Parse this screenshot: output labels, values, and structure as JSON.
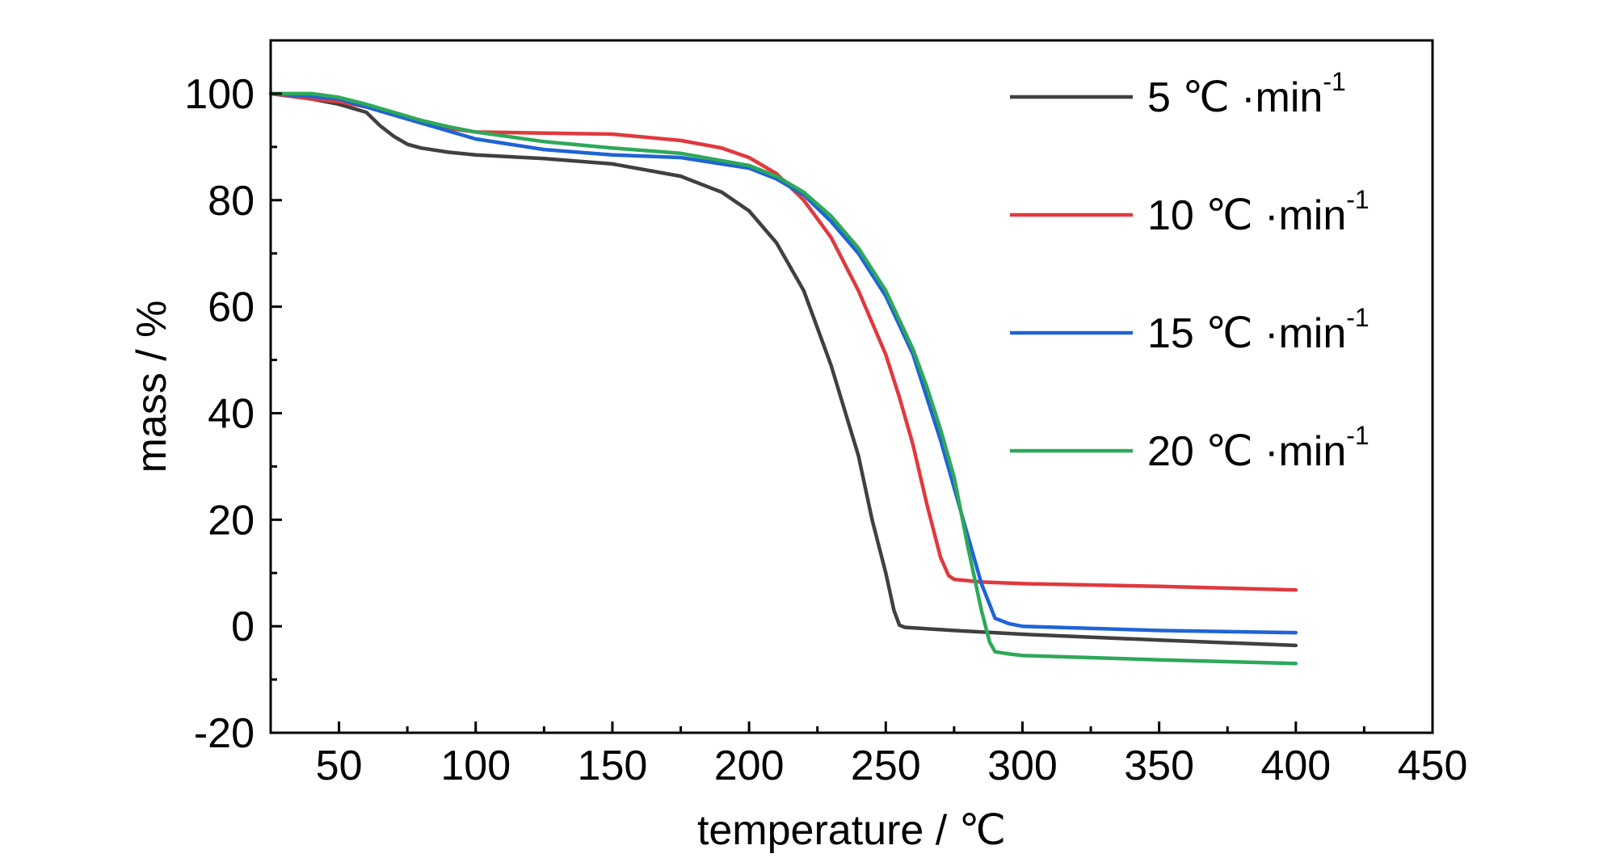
{
  "chart_data": {
    "type": "line",
    "title": "",
    "xlabel": "temperature / ℃",
    "ylabel": "mass / %",
    "xlim": [
      25,
      450
    ],
    "ylim": [
      -20,
      110
    ],
    "xticks": [
      50,
      100,
      150,
      200,
      250,
      300,
      350,
      400,
      450
    ],
    "yticks": [
      -20,
      0,
      20,
      40,
      60,
      80,
      100
    ],
    "grid": false,
    "legend_position": "top-right",
    "legend_suffix": "℃ ·min",
    "legend_superscript": "-1",
    "series": [
      {
        "name": "5",
        "color": "#404040",
        "x": [
          25,
          40,
          50,
          60,
          65,
          70,
          75,
          80,
          90,
          100,
          125,
          150,
          175,
          190,
          200,
          210,
          220,
          230,
          240,
          245,
          250,
          253,
          255,
          257,
          275,
          300,
          350,
          400
        ],
        "y": [
          100,
          99,
          98,
          96.5,
          94,
          92,
          90.5,
          89.8,
          89,
          88.5,
          87.8,
          86.8,
          84.5,
          81.5,
          78,
          72,
          63,
          49,
          32,
          20,
          10,
          3,
          0.2,
          -0.2,
          -0.8,
          -1.5,
          -2.6,
          -3.6
        ]
      },
      {
        "name": "10",
        "color": "#e0393e",
        "x": [
          25,
          40,
          50,
          60,
          70,
          80,
          90,
          100,
          125,
          150,
          175,
          190,
          200,
          210,
          220,
          230,
          240,
          250,
          255,
          260,
          265,
          270,
          273,
          275,
          285,
          300,
          350,
          400
        ],
        "y": [
          100,
          99,
          98.5,
          97.5,
          96,
          94.5,
          93.5,
          92.8,
          92.6,
          92.4,
          91.2,
          89.8,
          88,
          85,
          80,
          73,
          63,
          51,
          43,
          34,
          23,
          13,
          9.5,
          8.8,
          8.3,
          8,
          7.5,
          6.8
        ]
      },
      {
        "name": "15",
        "color": "#1f64d6",
        "x": [
          25,
          40,
          50,
          60,
          70,
          80,
          90,
          100,
          125,
          150,
          175,
          200,
          210,
          220,
          230,
          240,
          250,
          260,
          265,
          270,
          275,
          280,
          285,
          290,
          295,
          300,
          350,
          400
        ],
        "y": [
          100,
          99.5,
          99,
          97.5,
          96,
          94.5,
          93,
          91.5,
          89.5,
          88.5,
          88,
          86,
          84,
          81,
          76,
          70,
          62,
          51,
          43,
          35,
          26,
          17,
          8,
          1.5,
          0.5,
          0,
          -0.8,
          -1.2
        ]
      },
      {
        "name": "20",
        "color": "#2ea85a",
        "x": [
          25,
          40,
          50,
          60,
          70,
          80,
          90,
          100,
          125,
          150,
          175,
          200,
          210,
          220,
          230,
          240,
          250,
          260,
          265,
          270,
          275,
          280,
          285,
          288,
          290,
          295,
          300,
          350,
          400
        ],
        "y": [
          100,
          100,
          99.3,
          98,
          96.5,
          95,
          93.8,
          92.8,
          91,
          89.8,
          88.8,
          86.5,
          84.5,
          81.5,
          77,
          71,
          63,
          52,
          45,
          37,
          28,
          15,
          3,
          -3,
          -4.8,
          -5.2,
          -5.5,
          -6.3,
          -7
        ]
      }
    ]
  }
}
